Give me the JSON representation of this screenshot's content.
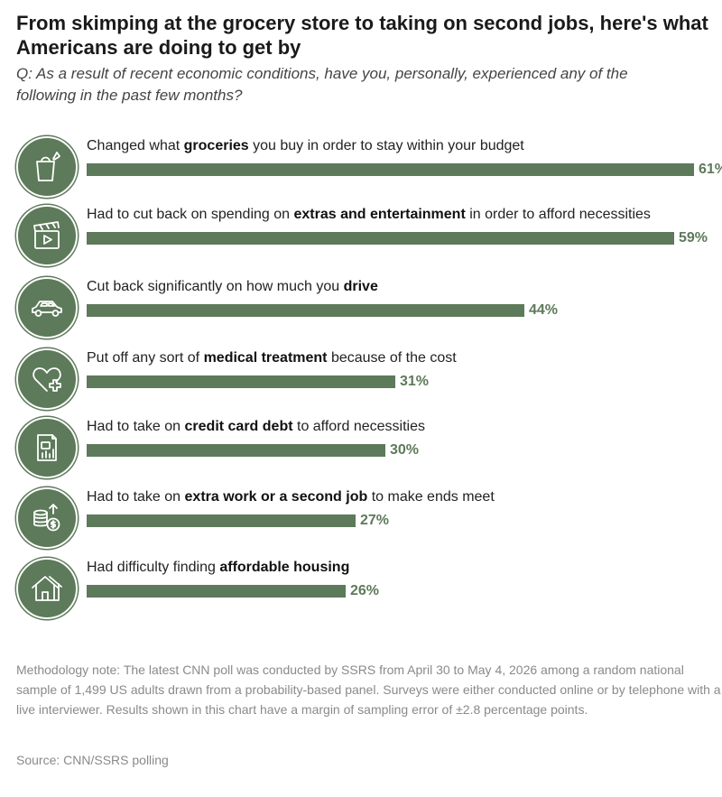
{
  "chart_data": {
    "type": "bar",
    "orientation": "horizontal",
    "title": "From skimping at the grocery store to taking on second jobs, here's what\nAmericans are doing to get by",
    "subtitle": "Q: As a result of recent economic conditions, have you, personally, experienced any of the\nfollowing in the past few months?",
    "value_suffix": "%",
    "xlim": [
      0,
      61
    ],
    "grid": false,
    "bar_color": "#5d7a5a",
    "items": [
      {
        "icon": "grocery-bag-icon",
        "pre": "Changed what ",
        "bold": "groceries",
        "post": " you buy in order to stay within your budget",
        "value": 61
      },
      {
        "icon": "clapperboard-icon",
        "pre": "Had to cut back on spending on ",
        "bold": "extras and entertainment",
        "post": " in order to afford necessities",
        "value": 59
      },
      {
        "icon": "car-icon",
        "pre": "Cut back significantly on how much you ",
        "bold": "drive",
        "post": "",
        "value": 44
      },
      {
        "icon": "heart-medical-icon",
        "pre": "Put off any sort of ",
        "bold": "medical treatment",
        "post": " because of the cost",
        "value": 31
      },
      {
        "icon": "credit-card-bill-icon",
        "pre": "Had to take on ",
        "bold": "credit card debt",
        "post": " to afford necessities",
        "value": 30
      },
      {
        "icon": "coins-icon",
        "pre": "Had to take on ",
        "bold": "extra work or a second job",
        "post": " to make ends meet",
        "value": 27
      },
      {
        "icon": "house-icon",
        "pre": "Had difficulty finding ",
        "bold": "affordable housing",
        "post": "",
        "value": 26
      }
    ]
  },
  "footer": {
    "note": "Methodology note: The latest CNN poll was conducted by SSRS from April 30 to May 4, 2026 among a random national sample of 1,499 US adults drawn from a probability-based panel. Surveys were either conducted online or by telephone with a live interviewer. Results shown in this chart have a margin of sampling error of ±2.8 percentage points.",
    "source": "Source: CNN/SSRS polling"
  }
}
